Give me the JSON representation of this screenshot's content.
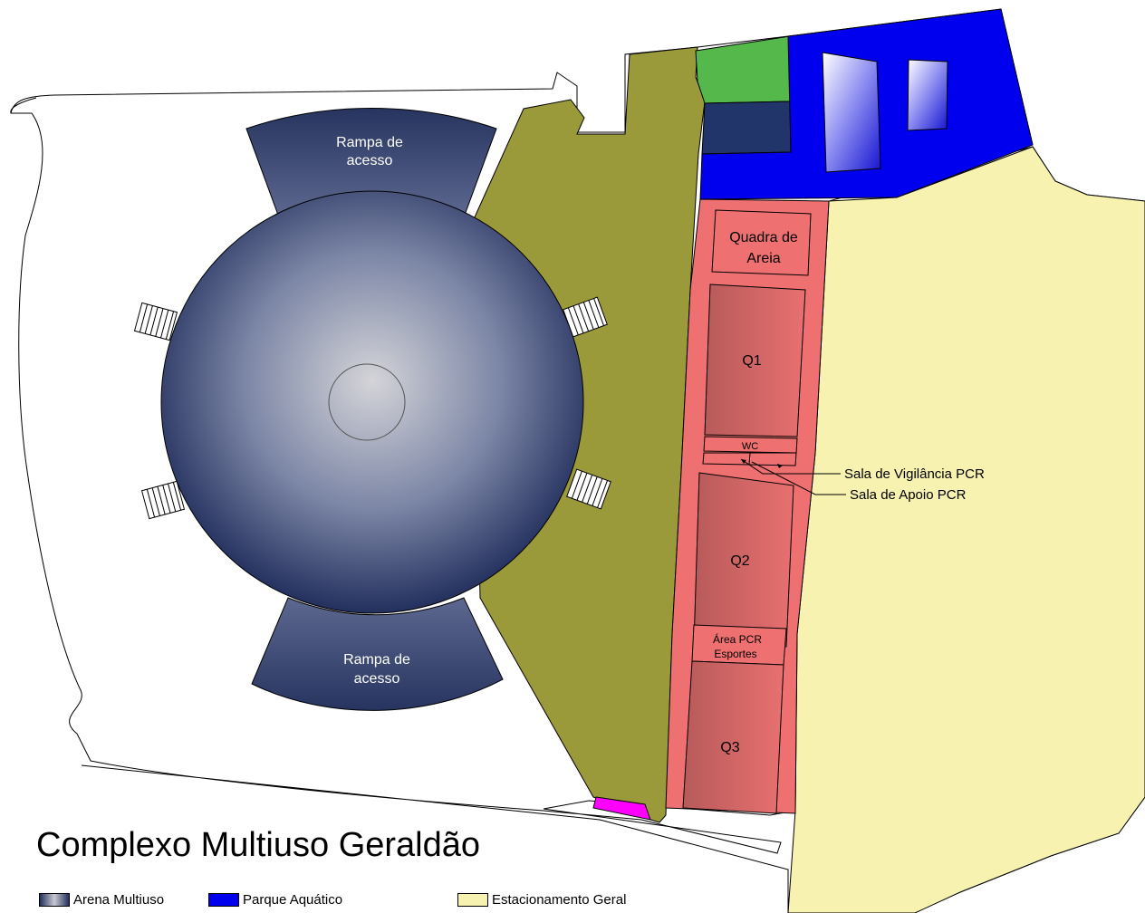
{
  "title": "Complexo Multiuso Geraldão",
  "labels": {
    "ramp_top_line1": "Rampa de",
    "ramp_top_line2": "acesso",
    "ramp_bottom_line1": "Rampa de",
    "ramp_bottom_line2": "acesso",
    "sand_court_line1": "Quadra de",
    "sand_court_line2": "Areia",
    "q1": "Q1",
    "wc": "WC",
    "q2": "Q2",
    "pcr_area_line1": "Área PCR",
    "pcr_area_line2": "Esportes",
    "q3": "Q3",
    "vigilance_room": "Sala de Vigilância PCR",
    "support_room": "Sala de Apoio PCR"
  },
  "legend": [
    {
      "label": "Arena Multiuso",
      "color": "#2e3d6b"
    },
    {
      "label": "Parque Aquático",
      "color": "#0000ee"
    },
    {
      "label": "Estacionamento Geral",
      "color": "#f7f2b0"
    }
  ],
  "colors": {
    "arena": "#2e3d6b",
    "aquatic_park": "#0000ee",
    "parking": "#f7f2b0",
    "olive_area": "#9a9a3a",
    "courts": "#ee7070",
    "green_block": "#55b84a",
    "navy_block": "#22356a",
    "magenta_block": "#ff00ff"
  }
}
